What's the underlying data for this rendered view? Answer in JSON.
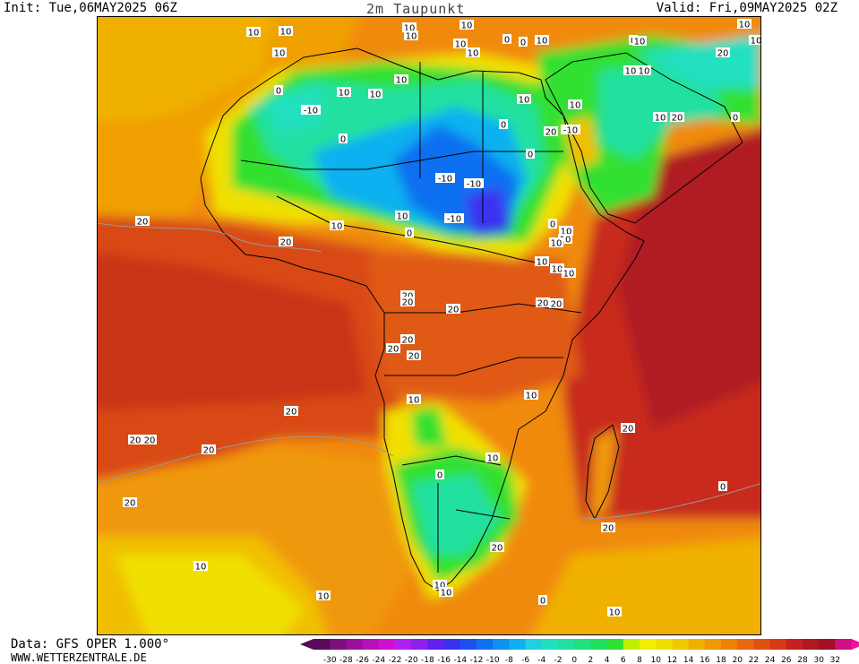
{
  "header": {
    "init": "Init: Tue,06MAY2025 06Z",
    "title": "2m Taupunkt",
    "valid": "Valid: Fri,09MAY2025 02Z"
  },
  "footer": {
    "source": "Data: GFS OPER 1.000°",
    "site": "WWW.WETTERZENTRALE.DE"
  },
  "legend": {
    "ticks": [
      "-30",
      "-28",
      "-26",
      "-24",
      "-22",
      "-20",
      "-18",
      "-16",
      "-14",
      "-12",
      "-10",
      "-8",
      "-6",
      "-4",
      "-2",
      "0",
      "2",
      "4",
      "6",
      "8",
      "10",
      "12",
      "14",
      "16",
      "18",
      "20",
      "22",
      "24",
      "26",
      "28",
      "30",
      "32"
    ],
    "colors": [
      "#5a0a5a",
      "#7a107a",
      "#9a109a",
      "#b810b8",
      "#d010d0",
      "#b020f0",
      "#8c20f0",
      "#6020f0",
      "#3a30f0",
      "#1c50f0",
      "#1070f0",
      "#1090f0",
      "#10b0f0",
      "#20d0e0",
      "#20e0c0",
      "#20e0a0",
      "#20e080",
      "#20e060",
      "#30e030",
      "#c0f000",
      "#f0f000",
      "#f0e000",
      "#f0c800",
      "#f0b000",
      "#f09800",
      "#f08000",
      "#e86810",
      "#e05010",
      "#d83818",
      "#c82020",
      "#b01820",
      "#a01028",
      "#d01080"
    ],
    "left_arrow_color": "#5a0a5a",
    "right_arrow_color": "#f010a0"
  },
  "map_labels": [
    {
      "text": "10"
    },
    {
      "text": "10"
    },
    {
      "text": "10"
    },
    {
      "text": "10"
    },
    {
      "text": "10"
    },
    {
      "text": "0"
    },
    {
      "text": "10"
    },
    {
      "text": "10"
    },
    {
      "text": "0"
    },
    {
      "text": "10"
    },
    {
      "text": "0"
    },
    {
      "text": "10"
    },
    {
      "text": "10"
    },
    {
      "text": "10"
    },
    {
      "text": "10"
    },
    {
      "text": "0"
    },
    {
      "text": "-10"
    },
    {
      "text": "10"
    },
    {
      "text": "10"
    },
    {
      "text": "10"
    },
    {
      "text": "0"
    },
    {
      "text": "10"
    },
    {
      "text": "0"
    },
    {
      "text": "-10"
    },
    {
      "text": "20"
    },
    {
      "text": "20"
    },
    {
      "text": "10"
    },
    {
      "text": "0"
    },
    {
      "text": "0"
    },
    {
      "text": "10"
    },
    {
      "text": "-10"
    },
    {
      "text": "-10"
    },
    {
      "text": "0"
    },
    {
      "text": "-10"
    },
    {
      "text": "20"
    },
    {
      "text": "10"
    },
    {
      "text": "10"
    },
    {
      "text": "0"
    },
    {
      "text": "20"
    },
    {
      "text": "0"
    },
    {
      "text": "10"
    },
    {
      "text": "10"
    },
    {
      "text": "10"
    },
    {
      "text": "10"
    },
    {
      "text": "10"
    },
    {
      "text": "10"
    },
    {
      "text": "20"
    },
    {
      "text": "20"
    },
    {
      "text": "20"
    },
    {
      "text": "20"
    },
    {
      "text": "20"
    },
    {
      "text": "20"
    },
    {
      "text": "20"
    },
    {
      "text": "20"
    },
    {
      "text": "10"
    },
    {
      "text": "10"
    },
    {
      "text": "20"
    },
    {
      "text": "20"
    },
    {
      "text": "20"
    },
    {
      "text": "20"
    },
    {
      "text": "10"
    },
    {
      "text": "0"
    },
    {
      "text": "20"
    },
    {
      "text": "20"
    },
    {
      "text": "0"
    },
    {
      "text": "20"
    },
    {
      "text": "10"
    },
    {
      "text": "10"
    },
    {
      "text": "0"
    },
    {
      "text": "10"
    },
    {
      "text": "10"
    },
    {
      "text": "10"
    },
    {
      "text": "20"
    },
    {
      "text": "20"
    },
    {
      "text": "10"
    },
    {
      "text": "10"
    }
  ]
}
